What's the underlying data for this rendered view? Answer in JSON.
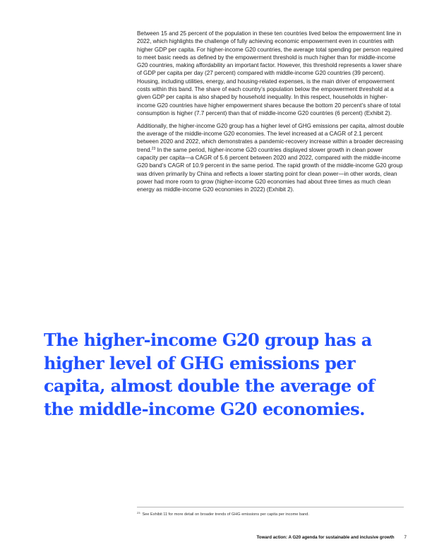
{
  "body": {
    "paragraph_1": "Between 15 and 25 percent of the population in these ten countries lived below the empowerment line in 2022, which highlights the challenge of fully achieving economic empowerment even in countries with higher GDP per capita. For higher-income G20 countries, the average total spending per person required to meet basic needs as defined by the empowerment threshold is much higher than for middle-income G20 countries, making affordability an important factor. However, this threshold represents a lower share of GDP per capita per day (27 percent) compared with middle-income G20 countries (39 percent). Housing, including utilities, energy, and housing-related expenses, is the main driver of empowerment costs within this band. The share of each country’s population below the empowerment threshold at a given GDP per capita is also shaped by household inequality. In this respect, households in higher-income G20 countries have higher empowerment shares because the bottom 20 percent’s share of total consumption is higher (7.7 percent) than that of middle-income G20 countries (6 percent) (Exhibit 2).",
    "paragraph_2_before_ref": "Additionally, the higher-income G20 group has a higher level of GHG emissions per capita, almost double the average of the middle-income G20 economies. The level increased at a CAGR of 2.1 percent between 2020 and 2022, which demonstrates a pandemic-recovery increase within a broader decreasing trend.",
    "paragraph_2_ref": "23",
    "paragraph_2_after_ref": " In the same period, higher-income G20 countries displayed slower growth in clean power capacity per capita—a CAGR of 5.6 percent between 2020 and 2022, compared with the middle-income G20 band’s CAGR of 10.9 percent in the same period. The rapid growth of the middle-income G20 group was driven primarily by China and reflects a lower starting point for clean power—in other words, clean power had more room to grow (higher-income G20 economies had about three times as much clean energy as middle-income G20 economies in 2022) (Exhibit 2)."
  },
  "pull_quote": "The higher-income G20 group has a higher level of GHG emissions per capita, almost double the average of the middle-income G20 economies.",
  "footnote": {
    "marker": "23",
    "text": "See Exhibit 11 for more detail on broader trends of GHG emissions per capita per income band."
  },
  "footer": {
    "title": "Toward action: A G20 agenda for sustainable and inclusive growth",
    "page_number": "7"
  },
  "colors": {
    "accent": "#2251ff",
    "text": "#222222"
  }
}
